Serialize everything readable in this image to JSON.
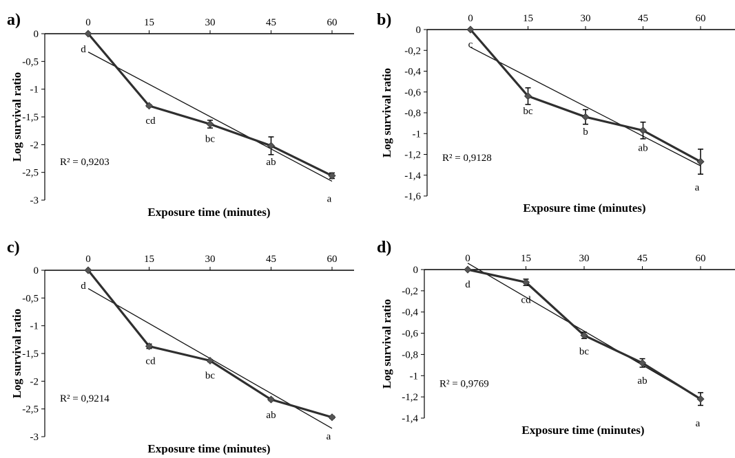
{
  "chart_data": [
    {
      "type": "line",
      "panel": "a)",
      "x": [
        0,
        15,
        30,
        45,
        60
      ],
      "xticks": [
        "0",
        "15",
        "30",
        "45",
        "60"
      ],
      "yticks": [
        "0",
        "-0,5",
        "-1",
        "-1,5",
        "-2",
        "-2,5",
        "-3"
      ],
      "ytick_values": [
        0,
        -0.5,
        -1,
        -1.5,
        -2,
        -2.5,
        -3
      ],
      "ylim": [
        -3,
        0
      ],
      "xlabel": "Exposure time (minutes)",
      "ylabel": "Log survival ratio",
      "values": [
        0,
        -1.3,
        -1.63,
        -2.02,
        -2.56
      ],
      "errors": [
        0,
        0.02,
        0.07,
        0.16,
        0.05
      ],
      "labels": [
        "d",
        "cd",
        "bc",
        "ab",
        "a"
      ],
      "trend": [
        -0.33,
        -2.66
      ],
      "r2": "R² = 0,9203"
    },
    {
      "type": "line",
      "panel": "b)",
      "x": [
        0,
        15,
        30,
        45,
        60
      ],
      "xticks": [
        "0",
        "15",
        "30",
        "45",
        "60"
      ],
      "yticks": [
        "0",
        "-0,2",
        "-0,4",
        "-0,6",
        "-0,8",
        "-1",
        "-1,2",
        "-1,4",
        "-1,6"
      ],
      "ytick_values": [
        0,
        -0.2,
        -0.4,
        -0.6,
        -0.8,
        -1,
        -1.2,
        -1.4,
        -1.6
      ],
      "ylim": [
        -1.6,
        0
      ],
      "xlabel": "Exposure time (minutes)",
      "ylabel": "Log survival ratio",
      "values": [
        0,
        -0.64,
        -0.84,
        -0.97,
        -1.27
      ],
      "errors": [
        0,
        0.08,
        0.07,
        0.08,
        0.12
      ],
      "labels": [
        "c",
        "bc",
        "b",
        "ab",
        "a"
      ],
      "trend": [
        -0.17,
        -1.31
      ],
      "r2": "R² = 0,9128"
    },
    {
      "type": "line",
      "panel": "c)",
      "x": [
        0,
        15,
        30,
        45,
        60
      ],
      "xticks": [
        "0",
        "15",
        "30",
        "45",
        "60"
      ],
      "yticks": [
        "0",
        "-0,5",
        "-1",
        "-1,5",
        "-2",
        "-2,5",
        "-3"
      ],
      "ytick_values": [
        0,
        -0.5,
        -1,
        -1.5,
        -2,
        -2.5,
        -3
      ],
      "ylim": [
        -3,
        0
      ],
      "xlabel": "Exposure time (minutes)",
      "ylabel": "Log survival ratio",
      "values": [
        0,
        -1.37,
        -1.63,
        -2.33,
        -2.65
      ],
      "errors": [
        0,
        0.04,
        0.02,
        0.02,
        0.02
      ],
      "labels": [
        "d",
        "cd",
        "bc",
        "ab",
        "a"
      ],
      "trend": [
        -0.33,
        -2.85
      ],
      "r2": "R² = 0,9214"
    },
    {
      "type": "line",
      "panel": "d)",
      "x": [
        0,
        15,
        30,
        45,
        60
      ],
      "xticks": [
        "0",
        "15",
        "30",
        "45",
        "60"
      ],
      "yticks": [
        "0",
        "-0,2",
        "-0,4",
        "-0,6",
        "-0,8",
        "-1",
        "-1,2",
        "-1,4"
      ],
      "ytick_values": [
        0,
        -0.2,
        -0.4,
        -0.6,
        -0.8,
        -1,
        -1.2,
        -1.4
      ],
      "ylim": [
        -1.4,
        0
      ],
      "xlabel": "Exposure time (minutes)",
      "ylabel": "Log survival ratio",
      "values": [
        0,
        -0.12,
        -0.62,
        -0.88,
        -1.22
      ],
      "errors": [
        0,
        0.03,
        0.03,
        0.04,
        0.06
      ],
      "labels": [
        "d",
        "cd",
        "bc",
        "ab",
        "a"
      ],
      "trend": [
        0.06,
        -1.22
      ],
      "r2": "R² = 0,9769"
    }
  ]
}
